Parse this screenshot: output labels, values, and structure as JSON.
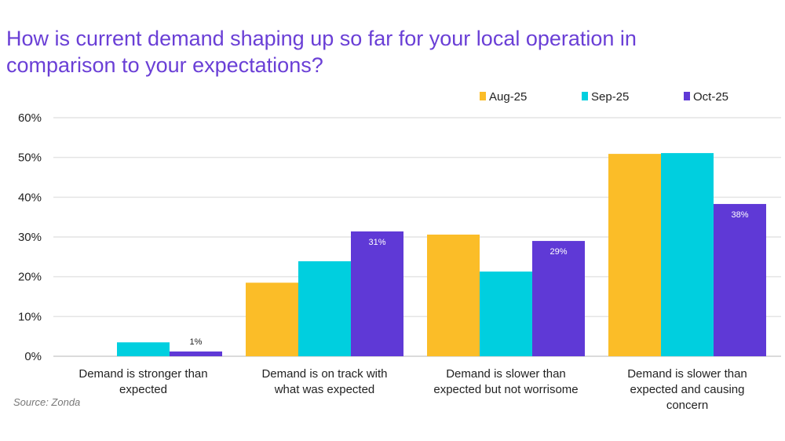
{
  "chart_data": {
    "type": "bar",
    "title": "How is current demand shaping up so far for your local operation in comparison to your expectations?",
    "categories": [
      [
        "Demand is stronger than",
        "expected"
      ],
      [
        "Demand is on track with",
        "what was expected"
      ],
      [
        "Demand is slower than",
        "expected but not worrisome"
      ],
      [
        "Demand is slower than",
        "expected and causing",
        "concern"
      ]
    ],
    "series": [
      {
        "name": "Aug-25",
        "color": "#fbbd28",
        "values": [
          0,
          18.5,
          30.6,
          50.9
        ],
        "labels": [
          "",
          "",
          "",
          ""
        ]
      },
      {
        "name": "Sep-25",
        "color": "#00cfdf",
        "values": [
          3.5,
          23.9,
          21.3,
          51.1
        ],
        "labels": [
          "",
          "",
          "",
          ""
        ]
      },
      {
        "name": "Oct-25",
        "color": "#5f39d6",
        "values": [
          1.2,
          31.4,
          29.0,
          38.3
        ],
        "labels": [
          "1%",
          "31%",
          "29%",
          "38%"
        ]
      }
    ],
    "ylim": [
      0,
      60
    ],
    "yticks": [
      "0%",
      "10%",
      "20%",
      "30%",
      "40%",
      "50%",
      "60%"
    ],
    "grid": true,
    "legend": "top-right",
    "source": "Source: Zonda"
  }
}
